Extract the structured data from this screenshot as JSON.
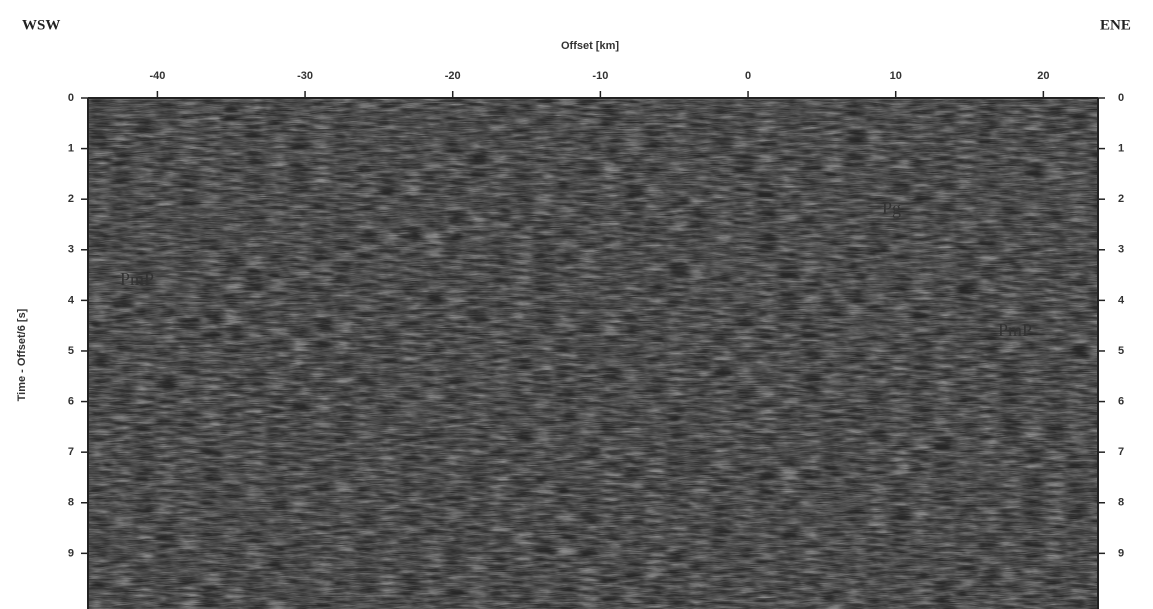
{
  "chart_data": {
    "type": "seismic-section",
    "xlabel": "Offset [km]",
    "ylabel": "Time - Offset/6 [s]",
    "left_label": "WSW",
    "right_label": "ENE",
    "xlim": [
      -44.7,
      23.7
    ],
    "xticks": [
      -40,
      -30,
      -20,
      -10,
      0,
      10,
      20
    ],
    "ylim": [
      0,
      10.1
    ],
    "yticks": [
      0,
      1,
      2,
      3,
      4,
      5,
      6,
      7,
      8,
      9
    ],
    "y_inverted": true,
    "annotations": [
      "PmP",
      "Pg",
      "PmP"
    ]
  }
}
